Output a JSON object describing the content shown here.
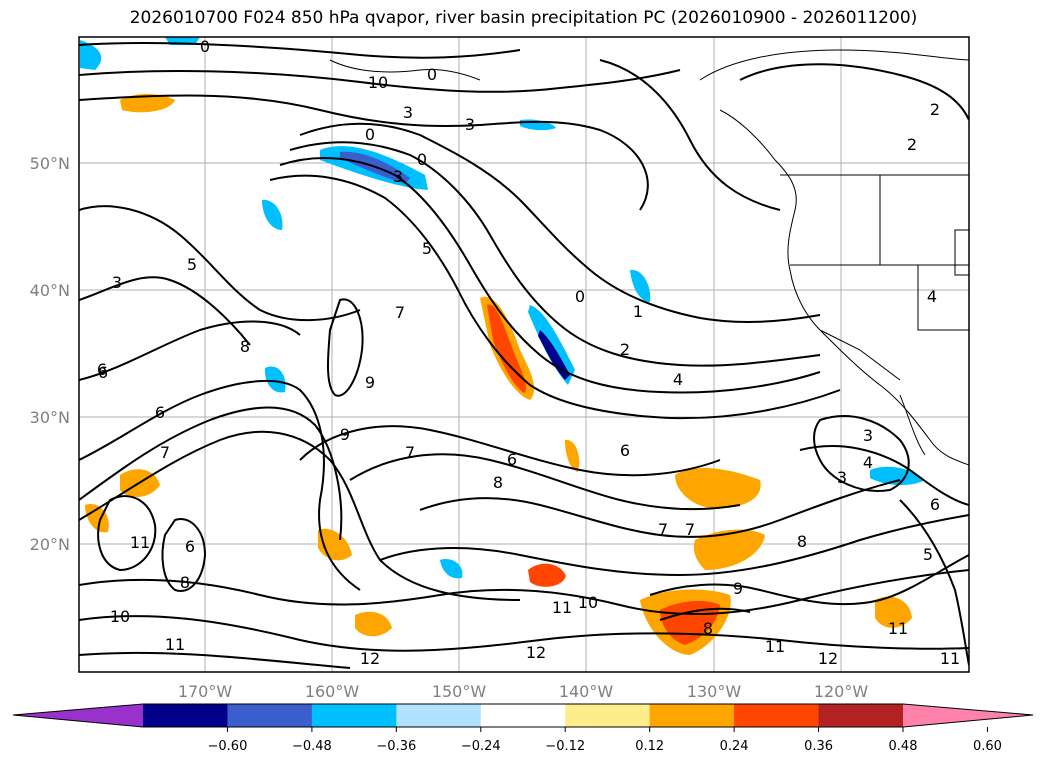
{
  "title": "2026010700 F024 850 hPa qvapor, river basin precipitation PC (2026010900 - 2026011200)",
  "lat_labels": [
    "50°N",
    "40°N",
    "30°N",
    "20°N"
  ],
  "lon_labels": [
    "170°W",
    "160°W",
    "150°W",
    "140°W",
    "130°W",
    "120°W"
  ],
  "colorbar": {
    "ticks": [
      "−0.60",
      "−0.48",
      "−0.36",
      "−0.24",
      "−0.12",
      "0.12",
      "0.24",
      "0.36",
      "0.48",
      "0.60"
    ],
    "colors": [
      "#9932cc",
      "#00008b",
      "#3a5fcd",
      "#00bfff",
      "#b0e2ff",
      "#ffffff",
      "#ffec8b",
      "#ffa500",
      "#ff4500",
      "#b22222",
      "#ff82ab"
    ]
  },
  "contour_labels": [
    "0",
    "0",
    "10",
    "3",
    "3",
    "0",
    "0",
    "3",
    "5",
    "5",
    "3",
    "7",
    "8",
    "6",
    "6",
    "7",
    "9",
    "9",
    "7",
    "6",
    "8",
    "6",
    "0",
    "1",
    "2",
    "4",
    "6",
    "8",
    "7",
    "7",
    "8",
    "9",
    "10",
    "11",
    "11",
    "12",
    "12",
    "11",
    "11",
    "12",
    "3",
    "4",
    "3",
    "6",
    "5",
    "4",
    "11",
    "2",
    "2",
    "10",
    "8",
    "11",
    "6"
  ]
}
